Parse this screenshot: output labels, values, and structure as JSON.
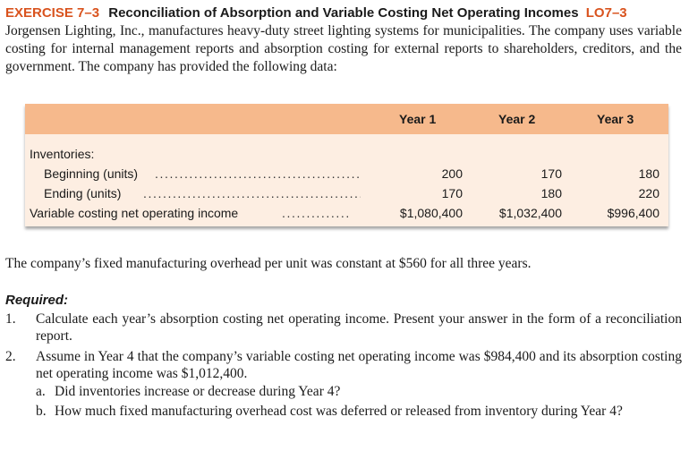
{
  "heading": {
    "exercise_label": "EXERCISE 7–3",
    "title": "Reconciliation of Absorption and Variable Costing Net Operating Incomes",
    "learning_objective": "LO7–3"
  },
  "intro": "Jorgensen Lighting, Inc., manufactures heavy-duty street lighting systems for municipalities. The company uses variable costing for internal management reports and absorption costing for external reports to share­holders, creditors, and the government. The company has provided the following data:",
  "table": {
    "columns": [
      "Year 1",
      "Year 2",
      "Year 3"
    ],
    "section_label": "Inventories:",
    "rows": [
      {
        "label": "Beginning (units)",
        "values": [
          "200",
          "170",
          "180"
        ]
      },
      {
        "label": "Ending (units)",
        "values": [
          "170",
          "180",
          "220"
        ]
      },
      {
        "label": "Variable costing net operating income",
        "values": [
          "$1,080,400",
          "$1,032,400",
          "$996,400"
        ]
      }
    ],
    "colors": {
      "header_bg": "#f6b98c",
      "body_bg": "#fdeee2"
    }
  },
  "overhead_note": "The company’s fixed manufacturing overhead per unit was constant at $560 for all three years.",
  "required": {
    "title": "Required:",
    "items": [
      {
        "num": "1.",
        "text": "Calculate each year’s absorption costing net operating income. Present your answer in the form of a reconciliation report."
      },
      {
        "num": "2.",
        "text": "Assume in Year 4 that the company’s variable costing net operating income was $984,400 and its absorption costing net operating income was $1,012,400.",
        "subitems": [
          {
            "letter": "a.",
            "text": "Did inventories increase or decrease during Year 4?"
          },
          {
            "letter": "b.",
            "text": "How much fixed manufacturing overhead cost was deferred or released from inventory during Year 4?"
          }
        ]
      }
    ]
  },
  "accent_color": "#d9531e"
}
